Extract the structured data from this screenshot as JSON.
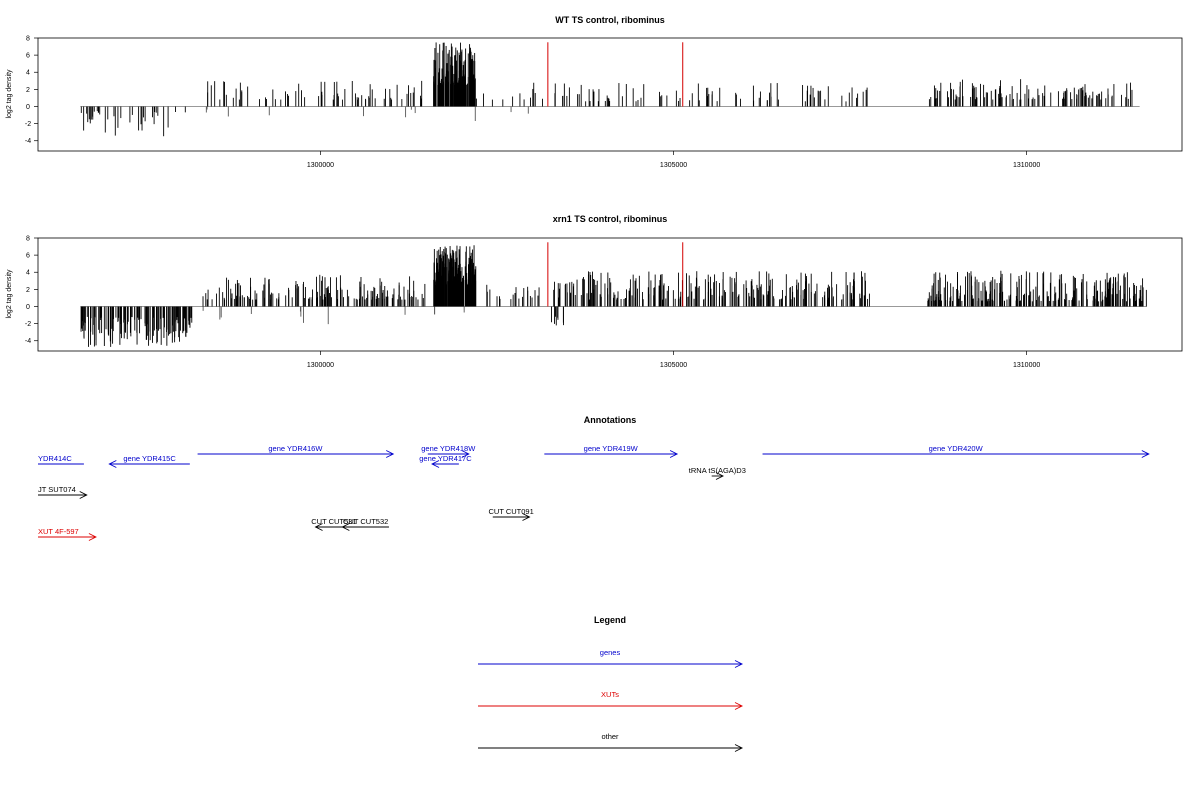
{
  "panels": [
    {
      "title": "WT TS control, ribominus",
      "ylabel": "log2 tag density",
      "yticks": [
        -4,
        -2,
        0,
        2,
        4,
        6,
        8
      ],
      "ylim": [
        -5.2,
        8
      ],
      "xlim": [
        1296000,
        1312200
      ],
      "xticks": [
        1300000,
        1305000,
        1310000
      ],
      "xtick_labels": [
        "1300000",
        "1305000",
        "1310000"
      ],
      "bar_color": "#000000",
      "highlight_color": "#d40000",
      "highlight_x": [
        1303220,
        1305130
      ],
      "highlight_height": 7.5,
      "seed": 17,
      "profile": [
        {
          "x0": 1296600,
          "x1": 1298200,
          "n": 36,
          "neg": [
            0.5,
            3.5
          ],
          "pos": [
            0,
            0
          ],
          "pos_frac": 0.05,
          "pos_extra": [
            0.3,
            1.1
          ]
        },
        {
          "x0": 1298200,
          "x1": 1301500,
          "n": 70,
          "neg": [
            0,
            0
          ],
          "pos": [
            0.8,
            3.0
          ],
          "pos_frac": 1,
          "neg_frac": 0.12,
          "neg_extra": [
            0.3,
            1.4
          ]
        },
        {
          "x0": 1301600,
          "x1": 1302200,
          "n": 150,
          "neg": [
            0,
            0
          ],
          "pos": [
            2.5,
            7.5
          ],
          "pos_frac": 1,
          "neg_frac": 0.02,
          "neg_extra": [
            0.5,
            2.0
          ]
        },
        {
          "x0": 1302200,
          "x1": 1303150,
          "n": 12,
          "neg": [
            0,
            0
          ],
          "pos": [
            0.8,
            2.8
          ],
          "pos_frac": 1,
          "neg_frac": 0.1,
          "neg_extra": [
            0.4,
            1.2
          ]
        },
        {
          "x0": 1303300,
          "x1": 1307800,
          "n": 85,
          "neg": [
            0,
            0
          ],
          "pos": [
            0.6,
            2.8
          ],
          "pos_frac": 1
        },
        {
          "x0": 1308600,
          "x1": 1311600,
          "n": 120,
          "neg": [
            0,
            0
          ],
          "pos": [
            0.8,
            3.2
          ],
          "pos_frac": 1
        }
      ]
    },
    {
      "title": "xrn1 TS control, ribominus",
      "ylabel": "log2 tag density",
      "yticks": [
        -4,
        -2,
        0,
        2,
        4,
        6,
        8
      ],
      "ylim": [
        -5.2,
        8
      ],
      "xlim": [
        1296000,
        1312200
      ],
      "xticks": [
        1300000,
        1305000,
        1310000
      ],
      "xtick_labels": [
        "1300000",
        "1305000",
        "1310000"
      ],
      "bar_color": "#000000",
      "highlight_color": "#d40000",
      "highlight_x": [
        1303220,
        1305130
      ],
      "highlight_height": 7.5,
      "seed": 29,
      "profile": [
        {
          "x0": 1296600,
          "x1": 1298200,
          "n": 140,
          "neg": [
            1.2,
            4.8
          ],
          "pos": [
            0,
            0
          ],
          "pos_frac": 0.03,
          "pos_extra": [
            0.8,
            2.6
          ]
        },
        {
          "x0": 1298300,
          "x1": 1301500,
          "n": 170,
          "neg": [
            0,
            0
          ],
          "pos": [
            0.8,
            3.8
          ],
          "pos_frac": 1,
          "neg_frac": 0.04,
          "neg_extra": [
            0.5,
            2.2
          ]
        },
        {
          "x0": 1301600,
          "x1": 1302200,
          "n": 200,
          "neg": [
            0,
            0
          ],
          "pos": [
            2.5,
            7.2
          ],
          "pos_frac": 1,
          "neg_frac": 0.03,
          "neg_extra": [
            0.6,
            2.0
          ]
        },
        {
          "x0": 1302200,
          "x1": 1303100,
          "n": 20,
          "neg": [
            0,
            0
          ],
          "pos": [
            0.8,
            2.8
          ],
          "pos_frac": 1
        },
        {
          "x0": 1303250,
          "x1": 1303450,
          "n": 8,
          "neg": [
            1.2,
            2.8
          ],
          "pos": [
            0,
            0
          ],
          "pos_frac": 0
        },
        {
          "x0": 1303300,
          "x1": 1307800,
          "n": 260,
          "neg": [
            0,
            0
          ],
          "pos": [
            0.8,
            4.2
          ],
          "pos_frac": 1
        },
        {
          "x0": 1308600,
          "x1": 1311700,
          "n": 260,
          "neg": [
            0,
            0
          ],
          "pos": [
            0.6,
            4.2
          ],
          "pos_frac": 1
        }
      ]
    }
  ],
  "annotations": {
    "title": "Annotations",
    "colors": {
      "gene": "#0000cc",
      "xut": "#dd0000",
      "other": "#000000"
    },
    "items": [
      {
        "label": "YDR414C",
        "kind": "gene",
        "dir": "none",
        "row": 0,
        "label_pos": "left",
        "x0": 1296000,
        "x1": 1296650
      },
      {
        "label": "gene YDR415C",
        "kind": "gene",
        "dir": "left",
        "row": 0,
        "label_pos": "center",
        "x0": 1297010,
        "x1": 1298150
      },
      {
        "label": "gene YDR416W",
        "kind": "gene",
        "dir": "right",
        "row": -1,
        "label_pos": "center",
        "x0": 1298260,
        "x1": 1301030
      },
      {
        "label": "gene YDR418W",
        "kind": "gene",
        "dir": "right",
        "row": -1,
        "label_pos": "center",
        "x0": 1301520,
        "x1": 1302100
      },
      {
        "label": "gene YDR417C",
        "kind": "gene",
        "dir": "left",
        "row": 0,
        "label_pos": "center",
        "x0": 1301580,
        "x1": 1301960
      },
      {
        "label": "gene YDR419W",
        "kind": "gene",
        "dir": "right",
        "row": -1,
        "label_pos": "center",
        "x0": 1303170,
        "x1": 1305050
      },
      {
        "label": "gene YDR420W",
        "kind": "gene",
        "dir": "right",
        "row": -1,
        "label_pos": "center",
        "x0": 1306260,
        "x1": 1311730
      },
      {
        "label": "tRNA tS(AGA)D3",
        "kind": "other",
        "dir": "right",
        "row": 1,
        "label_pos": "center",
        "x0": 1305540,
        "x1": 1305700
      },
      {
        "label": "JT SUT074",
        "kind": "other",
        "dir": "right",
        "row": 2,
        "label_pos": "left",
        "x0": 1296000,
        "x1": 1296690
      },
      {
        "label": "CUT CUT531",
        "kind": "other",
        "dir": "left",
        "row": 4,
        "label_pos": "center",
        "x0": 1299930,
        "x1": 1300450
      },
      {
        "label": "CUT CUT532",
        "kind": "other",
        "dir": "left",
        "row": 4,
        "label_pos": "center",
        "x0": 1300310,
        "x1": 1300970
      },
      {
        "label": "CUT CUT091",
        "kind": "other",
        "dir": "right",
        "row": 3,
        "label_pos": "center",
        "x0": 1302440,
        "x1": 1302960
      },
      {
        "label": "XUT 4F-597",
        "kind": "xut",
        "dir": "right",
        "row": 5,
        "label_pos": "left",
        "x0": 1296000,
        "x1": 1296820
      }
    ]
  },
  "legend": {
    "title": "Legend",
    "items": [
      {
        "label": "genes",
        "kind": "gene"
      },
      {
        "label": "XUTs",
        "kind": "xut"
      },
      {
        "label": "other",
        "kind": "other"
      }
    ]
  }
}
